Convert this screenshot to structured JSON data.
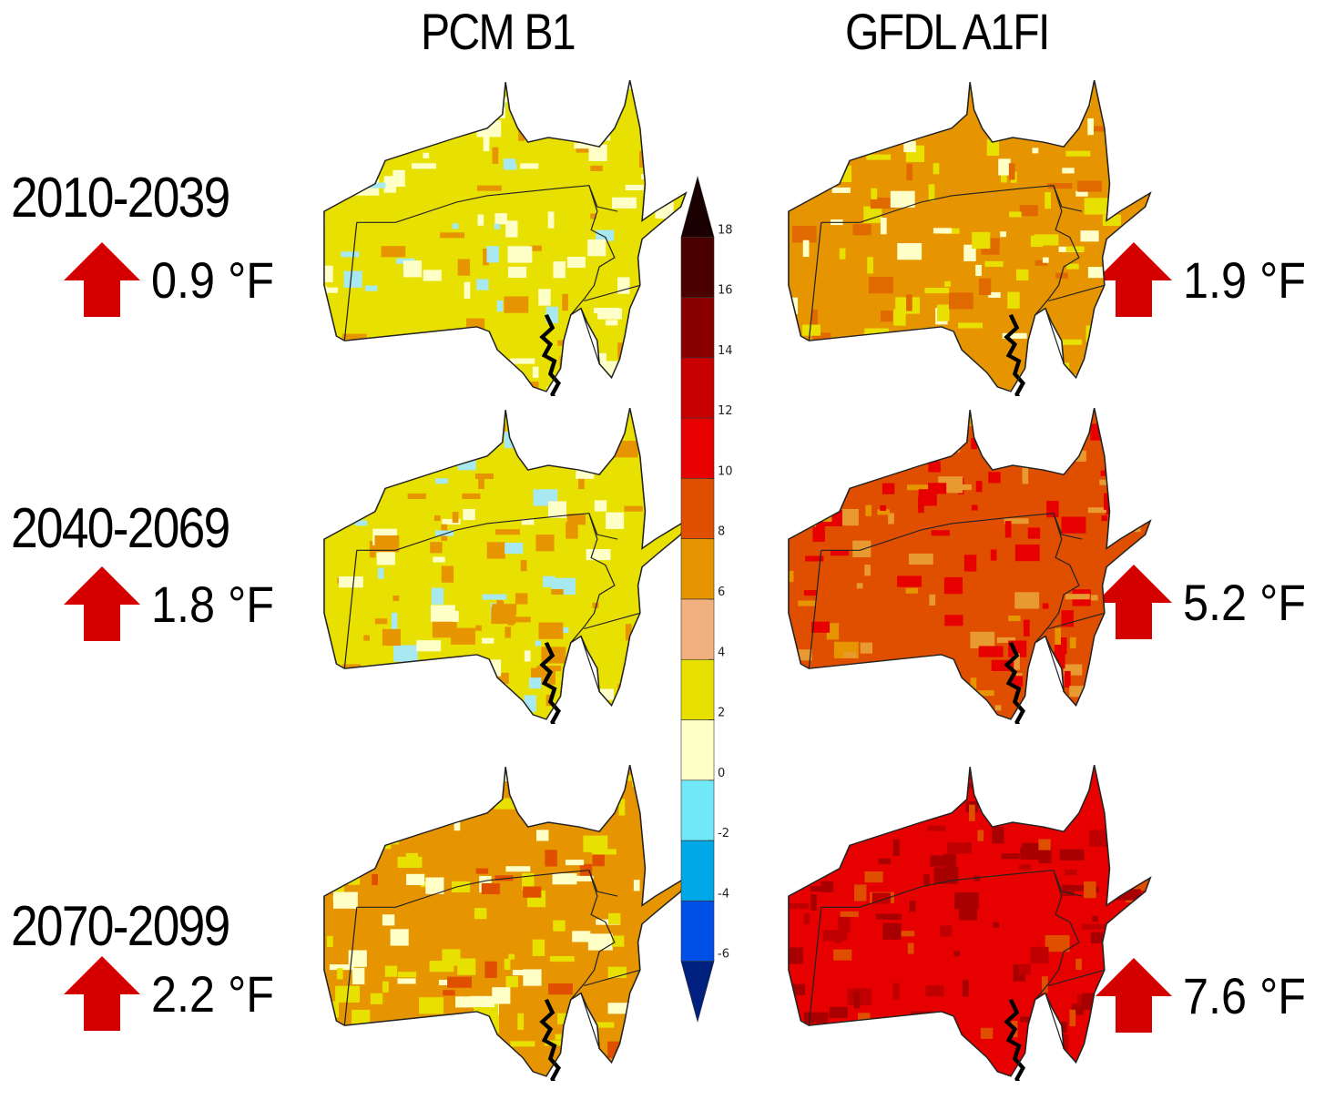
{
  "columns": [
    "PCM B1",
    "GFDL A1FI"
  ],
  "periods": [
    "2010-2039",
    "2040-2069",
    "2070-2099"
  ],
  "changes": {
    "pcm_b1": [
      "0.9 °F",
      "1.8 °F",
      "2.2 °F"
    ],
    "gfdl_a1fi": [
      "1.9 °F",
      "5.2 °F",
      "7.6 °F"
    ]
  },
  "arrow_color": "#d40000",
  "maps": [
    {
      "name": "map-pcm-b1-2010-2039",
      "base": "#e8e000",
      "mix": [
        "#ffffc8",
        "#ffffc8",
        "#a8e8f0",
        "#e69500"
      ]
    },
    {
      "name": "map-gfdl-a1fi-2010-2039",
      "base": "#e69500",
      "mix": [
        "#e8e000",
        "#e8e000",
        "#ffffc8",
        "#e06a00"
      ]
    },
    {
      "name": "map-pcm-b1-2040-2069",
      "base": "#e8e000",
      "mix": [
        "#e69500",
        "#e69500",
        "#ffffc8",
        "#a8e8f0"
      ]
    },
    {
      "name": "map-gfdl-a1fi-2040-2069",
      "base": "#e04e00",
      "mix": [
        "#e60000",
        "#e60000",
        "#e69500",
        "#e89a30"
      ]
    },
    {
      "name": "map-pcm-b1-2070-2099",
      "base": "#e69500",
      "mix": [
        "#e8e000",
        "#e8e000",
        "#ffffc8",
        "#e04e00"
      ]
    },
    {
      "name": "map-gfdl-a1fi-2070-2099",
      "base": "#e60000",
      "mix": [
        "#a80000",
        "#a80000",
        "#c00000",
        "#e04e00"
      ]
    }
  ],
  "colorbar": {
    "ticks": [
      "18",
      "16",
      "14",
      "12",
      "10",
      "8",
      "6",
      "4",
      "2",
      "0",
      "-2",
      "-4",
      "-6"
    ],
    "colors": [
      "#1a0000",
      "#4a0000",
      "#8a0000",
      "#c80000",
      "#e60000",
      "#e04e00",
      "#e69500",
      "#f0b080",
      "#e8e000",
      "#ffffc8",
      "#70e8f8",
      "#00a8e8",
      "#0050e8",
      "#002080"
    ]
  }
}
